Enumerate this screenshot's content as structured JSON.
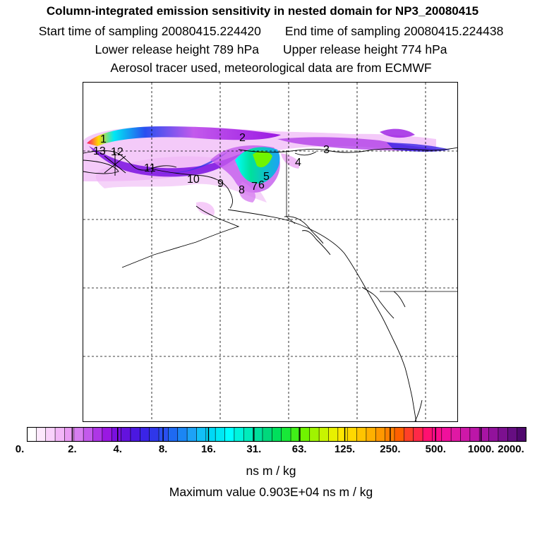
{
  "header": {
    "title": "Column-integrated emission sensitivity in nested domain for NP3_20080415",
    "start_time": "Start time of sampling 20080415.224420",
    "end_time": "End time of sampling 20080415.224438",
    "lower_height": "Lower release height  789 hPa",
    "upper_height": "Upper release height  774 hPa",
    "tracer_note": "Aerosol tracer used, meteorological data are from ECMWF"
  },
  "map": {
    "grid": "dashed",
    "point_labels": [
      "1",
      "2",
      "3",
      "4",
      "5",
      "6",
      "7",
      "8",
      "9",
      "10",
      "11",
      "12",
      "13"
    ]
  },
  "colorbar": {
    "tick_labels": [
      "0.",
      "2.",
      "4.",
      "8.",
      "16.",
      "31.",
      "63.",
      "125.",
      "250.",
      "500.",
      "1000.",
      "2000."
    ],
    "colors": [
      "#ffffff",
      "#fde9fd",
      "#f9d2fb",
      "#f2b6f7",
      "#e99bf3",
      "#d77ef0",
      "#c35aec",
      "#ae36e6",
      "#9a18e2",
      "#7a10e0",
      "#6312de",
      "#4b18e0",
      "#3a24e6",
      "#2f37ea",
      "#2a4ff0",
      "#1e6af2",
      "#1b86f4",
      "#1da2f6",
      "#12c0f7",
      "#00d8f6",
      "#00e8f4",
      "#00ffff",
      "#00f4dc",
      "#00ecbc",
      "#00e09c",
      "#00d87c",
      "#00e05c",
      "#18e838",
      "#40f018",
      "#70f400",
      "#a0f400",
      "#c8f400",
      "#e8f000",
      "#ffe800",
      "#ffd800",
      "#ffc400",
      "#ffb000",
      "#ff9800",
      "#ff8000",
      "#ff6000",
      "#ff4028",
      "#ff2848",
      "#ff1070",
      "#fb0c8a",
      "#f0109c",
      "#e018a4",
      "#ce18a8",
      "#bc16a8",
      "#a814a4",
      "#92129c",
      "#7c1090",
      "#660e82",
      "#50086e"
    ],
    "units": "ns m / kg",
    "max_value": "Maximum value  0.903E+04 ns m / kg"
  }
}
